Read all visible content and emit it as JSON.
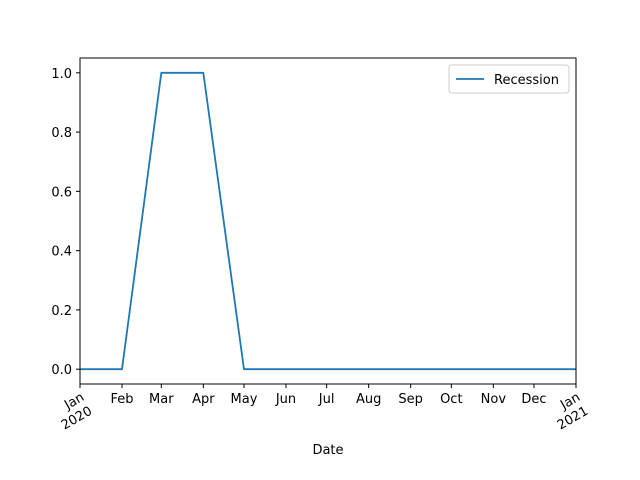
{
  "chart_data": {
    "type": "line",
    "title": "",
    "xlabel": "Date",
    "ylabel": "",
    "x": [
      "2020-01-01",
      "2020-02-01",
      "2020-03-01",
      "2020-04-01",
      "2020-05-01",
      "2020-06-01",
      "2020-07-01",
      "2020-08-01",
      "2020-09-01",
      "2020-10-01",
      "2020-11-01",
      "2020-12-01",
      "2021-01-01"
    ],
    "series": [
      {
        "name": "Recession",
        "color": "#1f77b4",
        "values": [
          0,
          0,
          1,
          1,
          0,
          0,
          0,
          0,
          0,
          0,
          0,
          0,
          0
        ]
      }
    ],
    "xlim": [
      "2020-01-01",
      "2021-01-01"
    ],
    "ylim": [
      -0.05,
      1.05
    ],
    "y_ticks": [
      "0.0",
      "0.2",
      "0.4",
      "0.6",
      "0.8",
      "1.0"
    ],
    "x_ticks": [
      {
        "date": "2020-01-01",
        "label": "Jan",
        "sub": "2020"
      },
      {
        "date": "2020-02-01",
        "label": "Feb",
        "sub": ""
      },
      {
        "date": "2020-03-01",
        "label": "Mar",
        "sub": ""
      },
      {
        "date": "2020-04-01",
        "label": "Apr",
        "sub": ""
      },
      {
        "date": "2020-05-01",
        "label": "May",
        "sub": ""
      },
      {
        "date": "2020-06-01",
        "label": "Jun",
        "sub": ""
      },
      {
        "date": "2020-07-01",
        "label": "Jul",
        "sub": ""
      },
      {
        "date": "2020-08-01",
        "label": "Aug",
        "sub": ""
      },
      {
        "date": "2020-09-01",
        "label": "Sep",
        "sub": ""
      },
      {
        "date": "2020-10-01",
        "label": "Oct",
        "sub": ""
      },
      {
        "date": "2020-11-01",
        "label": "Nov",
        "sub": ""
      },
      {
        "date": "2020-12-01",
        "label": "Dec",
        "sub": ""
      },
      {
        "date": "2021-01-01",
        "label": "Jan",
        "sub": "2021"
      }
    ],
    "grid": false,
    "legend": "upper right"
  }
}
